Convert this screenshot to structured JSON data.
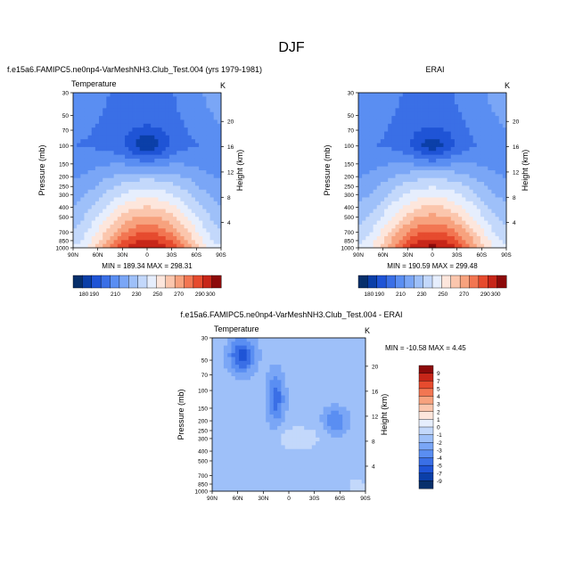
{
  "page_title": "DJF",
  "colors": {
    "scale": [
      "#08306b",
      "#0b3fa8",
      "#1f54d6",
      "#3a6fe6",
      "#5a8ef2",
      "#7aa6f6",
      "#9ec0f9",
      "#c3d8fb",
      "#e6eefd",
      "#fde6dc",
      "#fbc6ad",
      "#f7a27e",
      "#f27652",
      "#e64b2e",
      "#c72619",
      "#8c0a0a"
    ],
    "diff_scale": [
      "#08306b",
      "#0b3fa8",
      "#1f54d6",
      "#3a6fe6",
      "#5a8ef2",
      "#7aa6f6",
      "#9ec0f9",
      "#c3d8fb",
      "#e6eefd",
      "#fde6dc",
      "#fbc6ad",
      "#f7a27e",
      "#f27652",
      "#e64b2e",
      "#c72619",
      "#8c0a0a"
    ]
  },
  "chart_data": [
    {
      "type": "heatmap",
      "title": "f.e15a6.FAMIPC5.ne0np4-VarMeshNH3.Club_Test.004 (yrs 1979-1981)",
      "subtitle_left": "Temperature",
      "subtitle_right": "K",
      "xlabel": "",
      "ylabel": "Pressure (mb)",
      "ylabel_right": "Height (km)",
      "x_ticks": [
        "90N",
        "60N",
        "30N",
        "0",
        "30S",
        "60S",
        "90S"
      ],
      "y_ticks": [
        "30",
        "50",
        "70",
        "100",
        "150",
        "200",
        "250",
        "300",
        "400",
        "500",
        "700",
        "850",
        "1000"
      ],
      "y_right_ticks": [
        "20",
        "16",
        "12",
        "8",
        "4"
      ],
      "stats": "MIN = 189.34   MAX = 298.31",
      "min": 189.34,
      "max": 298.31,
      "colorbar_labels": [
        "180",
        "190",
        "200",
        "210",
        "220",
        "230",
        "240",
        "250",
        "260",
        "270",
        "280",
        "290",
        "300"
      ]
    },
    {
      "type": "heatmap",
      "title": "ERAI",
      "subtitle_left": "",
      "subtitle_right": "K",
      "xlabel": "",
      "ylabel": "Pressure (mb)",
      "ylabel_right": "Height (km)",
      "x_ticks": [
        "90N",
        "60N",
        "30N",
        "0",
        "30S",
        "60S",
        "90S"
      ],
      "y_ticks": [
        "30",
        "50",
        "70",
        "100",
        "150",
        "200",
        "250",
        "300",
        "400",
        "500",
        "700",
        "850",
        "1000"
      ],
      "y_right_ticks": [
        "20",
        "16",
        "12",
        "8",
        "4"
      ],
      "stats": "MIN = 190.59   MAX = 299.48",
      "min": 190.59,
      "max": 299.48,
      "colorbar_labels": [
        "180",
        "190",
        "200",
        "210",
        "220",
        "230",
        "240",
        "250",
        "260",
        "270",
        "280",
        "290",
        "300"
      ]
    },
    {
      "type": "heatmap",
      "title": "f.e15a6.FAMIPC5.ne0np4-VarMeshNH3.Club_Test.004 - ERAI",
      "subtitle_left": "Temperature",
      "subtitle_right": "K",
      "xlabel": "",
      "ylabel": "Pressure (mb)",
      "ylabel_right": "Height (km)",
      "x_ticks": [
        "90N",
        "60N",
        "30N",
        "0",
        "30S",
        "60S",
        "90S"
      ],
      "y_ticks": [
        "30",
        "50",
        "70",
        "100",
        "150",
        "200",
        "250",
        "300",
        "400",
        "500",
        "700",
        "850",
        "1000"
      ],
      "y_right_ticks": [
        "20",
        "16",
        "12",
        "8",
        "4"
      ],
      "stats": "MIN = -10.58   MAX =   4.45",
      "min": -10.58,
      "max": 4.45,
      "colorbar_labels": [
        "9",
        "7",
        "5",
        "4",
        "3",
        "2",
        "1",
        "0",
        "-1",
        "-2",
        "-3",
        "-4",
        "-5",
        "-7",
        "-9"
      ]
    }
  ]
}
